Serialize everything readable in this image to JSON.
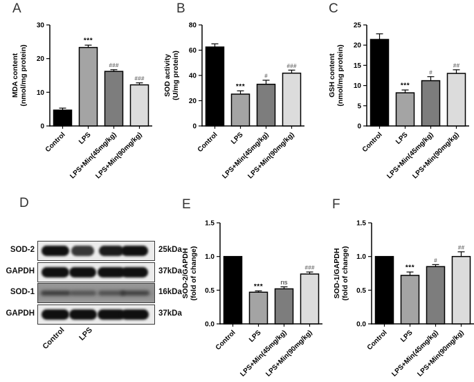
{
  "chart_data": [
    {
      "panel": "A",
      "type": "bar",
      "categories": [
        "Control",
        "LPS",
        "LPS+Min(45mg/kg)",
        "LPS+Min(90mg/kg)"
      ],
      "values": [
        4.7,
        23.3,
        16.2,
        12.2
      ],
      "errors": [
        0.6,
        0.7,
        0.5,
        0.6
      ],
      "annotations": [
        "",
        "***",
        "###",
        "###"
      ],
      "ylabel_lines": [
        "MDA content",
        "(nmol/mg protein)"
      ],
      "ylim": [
        0,
        30
      ],
      "yticks": [
        "0",
        "10",
        "20",
        "30"
      ],
      "bar_colors": [
        "#000000",
        "#a4a4a4",
        "#7d7d7d",
        "#dcdcdc"
      ],
      "grid": false,
      "legend": "none"
    },
    {
      "panel": "B",
      "type": "bar",
      "categories": [
        "Control",
        "LPS",
        "LPS+Min(45mg/kg)",
        "LPS+Min(90mg/kg)"
      ],
      "values": [
        62.5,
        25.2,
        33.0,
        41.8
      ],
      "errors": [
        2.5,
        2.6,
        3.2,
        2.4
      ],
      "annotations": [
        "",
        "***",
        "#",
        "###"
      ],
      "ylabel_lines": [
        "SOD activity",
        "(U/mg protein)"
      ],
      "ylim": [
        0,
        80
      ],
      "yticks": [
        "0",
        "20",
        "40",
        "60",
        "80"
      ],
      "bar_colors": [
        "#000000",
        "#a4a4a4",
        "#7d7d7d",
        "#dcdcdc"
      ],
      "grid": false,
      "legend": "none"
    },
    {
      "panel": "C",
      "type": "bar",
      "categories": [
        "Control",
        "LPS",
        "LPS+Min(45mg/kg)",
        "LPS+Min(90mg/kg)"
      ],
      "values": [
        21.4,
        8.2,
        11.2,
        13.0
      ],
      "errors": [
        1.4,
        0.7,
        1.0,
        0.9
      ],
      "annotations": [
        "",
        "***",
        "#",
        "##"
      ],
      "ylabel_lines": [
        "GSH content",
        "(nmol/mg protein)"
      ],
      "ylim": [
        0,
        25
      ],
      "yticks": [
        "0",
        "5",
        "10",
        "15",
        "20",
        "25"
      ],
      "bar_colors": [
        "#000000",
        "#a4a4a4",
        "#7d7d7d",
        "#dcdcdc"
      ],
      "grid": false,
      "legend": "none"
    },
    {
      "panel": "E",
      "type": "bar",
      "categories": [
        "Control",
        "LPS",
        "LPS+Min(45mg/kg)",
        "LPS+Min(90mg/kg)"
      ],
      "values": [
        1.0,
        0.47,
        0.52,
        0.74
      ],
      "errors": [
        0,
        0.02,
        0.03,
        0.03
      ],
      "annotations": [
        "",
        "***",
        "ns",
        "###"
      ],
      "ylabel_lines": [
        "SOD-2/GAPDH",
        "(fold of change)"
      ],
      "ylim": [
        0,
        1.5
      ],
      "yticks": [
        "0.0",
        "0.5",
        "1.0",
        "1.5"
      ],
      "bar_colors": [
        "#000000",
        "#a4a4a4",
        "#7d7d7d",
        "#dcdcdc"
      ],
      "grid": false,
      "legend": "none"
    },
    {
      "panel": "F",
      "type": "bar",
      "categories": [
        "Control",
        "LPS",
        "LPS+Min(45mg/kg)",
        "LPS+Min(90mg/kg)"
      ],
      "values": [
        1.0,
        0.72,
        0.85,
        1.0
      ],
      "errors": [
        0,
        0.05,
        0.03,
        0.07
      ],
      "annotations": [
        "",
        "***",
        "#",
        "##"
      ],
      "ylabel_lines": [
        "SOD-1/GAPDH",
        "(fold of change)"
      ],
      "ylim": [
        0,
        1.5
      ],
      "yticks": [
        "0.0",
        "0.5",
        "1.0",
        "1.5"
      ],
      "bar_colors": [
        "#000000",
        "#a4a4a4",
        "#7d7d7d",
        "#dcdcdc"
      ],
      "grid": false,
      "legend": "none"
    }
  ],
  "blot": {
    "panel": "D",
    "rows": [
      {
        "label": "SOD-2",
        "kda": "25kDa",
        "faint": false,
        "bands": [
          1.0,
          0.72,
          0.85,
          0.97
        ]
      },
      {
        "label": "GAPDH",
        "kda": "37kDa",
        "faint": false,
        "bands": [
          1.0,
          0.92,
          1.0,
          0.95
        ]
      },
      {
        "label": "SOD-1",
        "kda": "16kDa",
        "faint": true,
        "bands": [
          0.85,
          0.6,
          0.65,
          0.8
        ]
      },
      {
        "label": "GAPDH",
        "kda": "37kDa",
        "faint": false,
        "bands": [
          1.0,
          1.0,
          1.0,
          1.0
        ]
      }
    ],
    "lane_labels": [
      "Control",
      "LPS"
    ]
  }
}
